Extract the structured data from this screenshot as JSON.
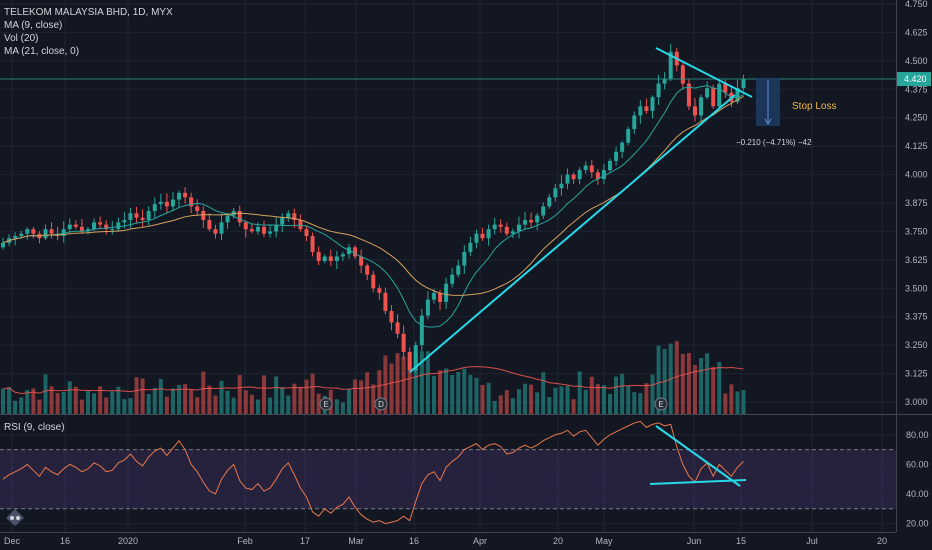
{
  "legend": {
    "symbol": "TELEKOM MALAYSIA BHD, 1D, MYX",
    "ma9": "MA (9, close)",
    "vol": "Vol (20)",
    "ma21": "MA (21, close, 0)",
    "rsi": "RSI (9, close)"
  },
  "colors": {
    "background": "#131722",
    "up": "#26a69a",
    "down": "#ef5350",
    "trendline": "#26d9e8",
    "ma9": "#26a69a",
    "ma21": "#d4a25a",
    "rsi_line": "#e8774a",
    "rsi_band": "#7e57c2",
    "stop_box": "#1e3a5f",
    "stop_text": "#f0b94a"
  },
  "annotations": {
    "stop_loss": "Stop Loss",
    "measure": "−0.210 (−4.71%) −42",
    "last_price": "4.420",
    "earnings_markers": [
      "E",
      "D",
      "E"
    ]
  },
  "chart_data": [
    {
      "type": "candlestick",
      "title": "TELEKOM MALAYSIA BHD, 1D, MYX",
      "y_ticks": [
        "4.750",
        "4.625",
        "4.500",
        "4.375",
        "4.250",
        "4.125",
        "4.000",
        "3.875",
        "3.750",
        "3.625",
        "3.500",
        "3.375",
        "3.250",
        "3.125",
        "3.000"
      ],
      "x_ticks": [
        "Dec",
        "16",
        "2020",
        "Feb",
        "17",
        "Mar",
        "16",
        "Apr",
        "20",
        "May",
        "Jun",
        "15",
        "Jul",
        "20"
      ],
      "ylim": [
        3.0,
        4.75
      ],
      "last_price": 4.42,
      "closes": [
        3.7,
        3.72,
        3.73,
        3.74,
        3.76,
        3.74,
        3.72,
        3.76,
        3.74,
        3.73,
        3.76,
        3.78,
        3.77,
        3.75,
        3.76,
        3.79,
        3.78,
        3.76,
        3.76,
        3.79,
        3.8,
        3.83,
        3.81,
        3.8,
        3.84,
        3.87,
        3.88,
        3.86,
        3.89,
        3.92,
        3.9,
        3.86,
        3.84,
        3.8,
        3.76,
        3.74,
        3.79,
        3.82,
        3.84,
        3.79,
        3.76,
        3.75,
        3.77,
        3.74,
        3.75,
        3.78,
        3.81,
        3.83,
        3.8,
        3.76,
        3.73,
        3.66,
        3.62,
        3.64,
        3.62,
        3.64,
        3.65,
        3.68,
        3.64,
        3.6,
        3.56,
        3.5,
        3.48,
        3.4,
        3.35,
        3.3,
        3.22,
        3.14,
        3.25,
        3.38,
        3.45,
        3.48,
        3.44,
        3.52,
        3.56,
        3.6,
        3.66,
        3.7,
        3.74,
        3.72,
        3.76,
        3.78,
        3.77,
        3.74,
        3.75,
        3.78,
        3.8,
        3.79,
        3.82,
        3.86,
        3.9,
        3.94,
        3.96,
        4.0,
        3.98,
        4.02,
        4.04,
        4.01,
        3.98,
        4.02,
        4.06,
        4.1,
        4.14,
        4.2,
        4.26,
        4.3,
        4.28,
        4.34,
        4.4,
        4.42,
        4.54,
        4.48,
        4.4,
        4.3,
        4.26,
        4.34,
        4.38,
        4.3,
        4.4,
        4.36,
        4.32,
        4.38,
        4.42
      ]
    },
    {
      "type": "line",
      "title": "RSI (9, close)",
      "y_ticks": [
        "80.00",
        "60.00",
        "40.00",
        "20.00"
      ],
      "ylim": [
        15,
        92
      ],
      "bands": [
        70,
        30
      ],
      "values": [
        50,
        53,
        55,
        57,
        60,
        56,
        52,
        58,
        55,
        53,
        57,
        60,
        58,
        55,
        57,
        61,
        59,
        55,
        56,
        61,
        63,
        67,
        62,
        59,
        65,
        69,
        71,
        66,
        71,
        76,
        70,
        60,
        55,
        48,
        42,
        40,
        50,
        56,
        60,
        49,
        44,
        43,
        47,
        42,
        44,
        50,
        57,
        61,
        53,
        44,
        38,
        28,
        25,
        30,
        27,
        31,
        33,
        38,
        31,
        26,
        23,
        21,
        22,
        20,
        21,
        22,
        25,
        22,
        35,
        47,
        53,
        55,
        49,
        58,
        62,
        65,
        70,
        72,
        74,
        70,
        73,
        74,
        72,
        67,
        68,
        71,
        73,
        71,
        73,
        76,
        78,
        80,
        81,
        83,
        79,
        82,
        83,
        78,
        73,
        77,
        80,
        82,
        84,
        86,
        88,
        89,
        85,
        87,
        88,
        86,
        87,
        72,
        60,
        52,
        48,
        57,
        61,
        52,
        60,
        56,
        52,
        58,
        62
      ]
    }
  ]
}
